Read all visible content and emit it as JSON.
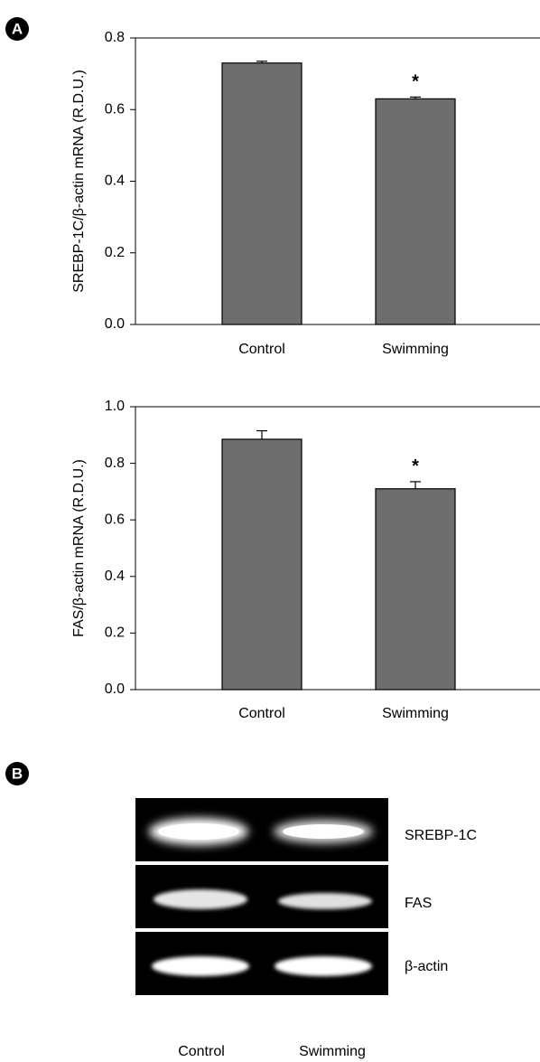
{
  "panels": [
    "A",
    "B"
  ],
  "chart_data": [
    {
      "type": "bar",
      "ylabel": "SREBP-1C/β-actin mRNA (R.D.U.)",
      "categories": [
        "Control",
        "Swimming"
      ],
      "series": [
        {
          "color": "#6e6e6e",
          "values": [
            0.73,
            0.63
          ],
          "errors": [
            0.005,
            0.005
          ]
        }
      ],
      "markers": [
        null,
        "*"
      ],
      "ylim": [
        0,
        0.8
      ],
      "yticks": [
        {
          "value": 0,
          "label": "0.0"
        },
        0.2,
        0.4,
        0.6,
        0.8
      ]
    },
    {
      "type": "bar",
      "ylabel": "FAS/β-actin mRNA (R.D.U.)",
      "categories": [
        "Control",
        "Swimming"
      ],
      "series": [
        {
          "color": "#6e6e6e",
          "values": [
            0.885,
            0.71
          ],
          "errors": [
            0.03,
            0.025
          ]
        }
      ],
      "markers": [
        null,
        "*"
      ],
      "ylim": [
        0,
        1
      ],
      "yticks": [
        {
          "value": 0,
          "label": "0.0"
        },
        0.2,
        0.4,
        0.6,
        0.8,
        {
          "value": 1,
          "label": "1.0"
        }
      ]
    }
  ],
  "gel": {
    "bands": [
      "SREBP-1C",
      "FAS",
      "β-actin"
    ],
    "lanes": [
      "Control",
      "Swimming"
    ]
  }
}
